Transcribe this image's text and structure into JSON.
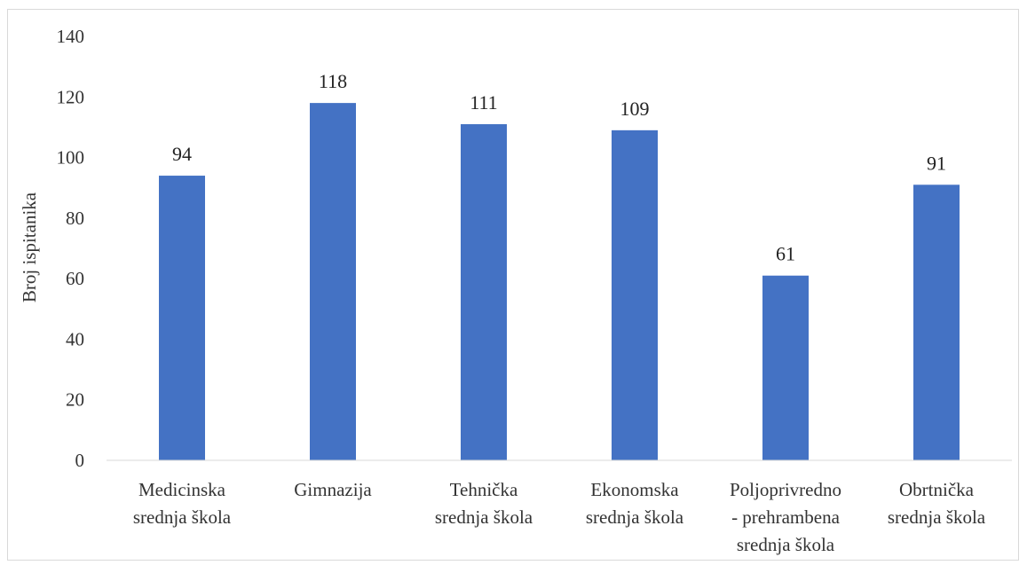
{
  "chart_data": {
    "type": "bar",
    "categories": [
      [
        "Medicinska",
        "srednja škola"
      ],
      [
        "Gimnazija"
      ],
      [
        "Tehnička",
        "srednja škola"
      ],
      [
        "Ekonomska",
        "srednja škola"
      ],
      [
        "Poljoprivredno",
        "- prehrambena",
        "srednja škola"
      ],
      [
        "Obrtnička",
        "srednja škola"
      ]
    ],
    "values": [
      94,
      118,
      111,
      109,
      61,
      91
    ],
    "title": "",
    "xlabel": "",
    "ylabel": "Broj ispitanika",
    "ylim": [
      0,
      140
    ],
    "yticks": [
      0,
      20,
      40,
      60,
      80,
      100,
      120,
      140
    ],
    "grid": false,
    "legend": "none",
    "bar_color": "#4472c4"
  }
}
